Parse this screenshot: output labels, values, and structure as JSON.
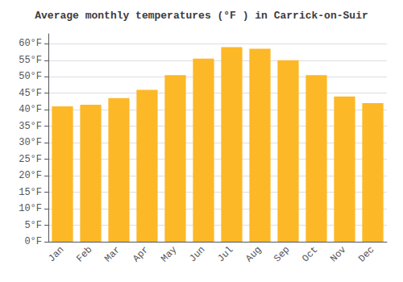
{
  "chart_data": {
    "type": "bar",
    "title": "Average monthly temperatures (°F ) in Carrick-on-Suir",
    "categories": [
      "Jan",
      "Feb",
      "Mar",
      "Apr",
      "May",
      "Jun",
      "Jul",
      "Aug",
      "Sep",
      "Oct",
      "Nov",
      "Dec"
    ],
    "values": [
      41,
      41.5,
      43.5,
      46,
      50.5,
      55.5,
      59,
      58.5,
      55,
      50.5,
      44,
      42
    ],
    "color": "#FDB827",
    "ylim": [
      0,
      63
    ],
    "yticks": [
      {
        "value": 0,
        "label": "0°F"
      },
      {
        "value": 5,
        "label": "5°F"
      },
      {
        "value": 10,
        "label": "10°F"
      },
      {
        "value": 15,
        "label": "15°F"
      },
      {
        "value": 20,
        "label": "20°F"
      },
      {
        "value": 25,
        "label": "25°F"
      },
      {
        "value": 30,
        "label": "30°F"
      },
      {
        "value": 35,
        "label": "35°F"
      },
      {
        "value": 40,
        "label": "40°F"
      },
      {
        "value": 45,
        "label": "45°F"
      },
      {
        "value": 50,
        "label": "50°F"
      },
      {
        "value": 55,
        "label": "55°F"
      },
      {
        "value": 60,
        "label": "60°F"
      }
    ],
    "grid": true
  }
}
